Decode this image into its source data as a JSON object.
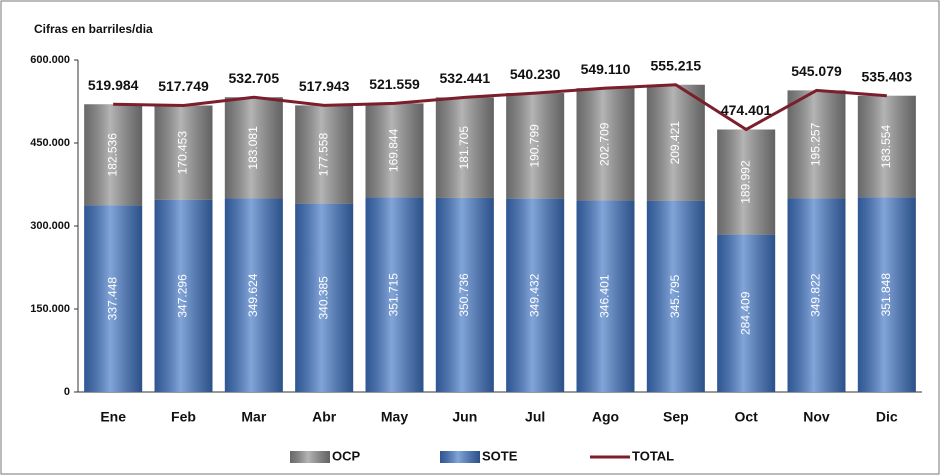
{
  "chart_data": {
    "type": "bar",
    "stacked": true,
    "subtitle": "Cifras en barriles/dia",
    "categories": [
      "Ene",
      "Feb",
      "Mar",
      "Abr",
      "May",
      "Jun",
      "Jul",
      "Ago",
      "Sep",
      "Oct",
      "Nov",
      "Dic"
    ],
    "series": [
      {
        "name": "OCP",
        "color": "#8c8c8c",
        "values": [
          182536,
          170453,
          183081,
          177558,
          169844,
          181705,
          190799,
          202709,
          209421,
          189992,
          195257,
          183554
        ],
        "value_labels": [
          "182.536",
          "170.453",
          "183.081",
          "177.558",
          "169.844",
          "181.705",
          "190.799",
          "202.709",
          "209.421",
          "189.992",
          "195.257",
          "183.554"
        ]
      },
      {
        "name": "SOTE",
        "color": "#3f74c4",
        "values": [
          337448,
          347296,
          349624,
          340385,
          351715,
          350736,
          349432,
          346401,
          345795,
          284409,
          349822,
          351848
        ],
        "value_labels": [
          "337.448",
          "347.296",
          "349.624",
          "340.385",
          "351.715",
          "350.736",
          "349.432",
          "346.401",
          "345.795",
          "284.409",
          "349.822",
          "351.848"
        ]
      },
      {
        "name": "TOTAL",
        "type": "line",
        "color": "#7a1f2b",
        "values": [
          519984,
          517749,
          532705,
          517943,
          521559,
          532441,
          540230,
          549110,
          555215,
          474401,
          545079,
          535403
        ],
        "value_labels": [
          "519.984",
          "517.749",
          "532.705",
          "517.943",
          "521.559",
          "532.441",
          "540.230",
          "549.110",
          "555.215",
          "474.401",
          "545.079",
          "535.403"
        ]
      }
    ],
    "ylim": [
      0,
      600000
    ],
    "yticks": [
      0,
      {
        "value": 150000,
        "label": "150.000"
      },
      {
        "value": 300000,
        "label": "300.000"
      },
      {
        "value": 450000,
        "label": "450.000"
      },
      {
        "value": 600000,
        "label": "600.000"
      }
    ],
    "legend": "bottom"
  }
}
